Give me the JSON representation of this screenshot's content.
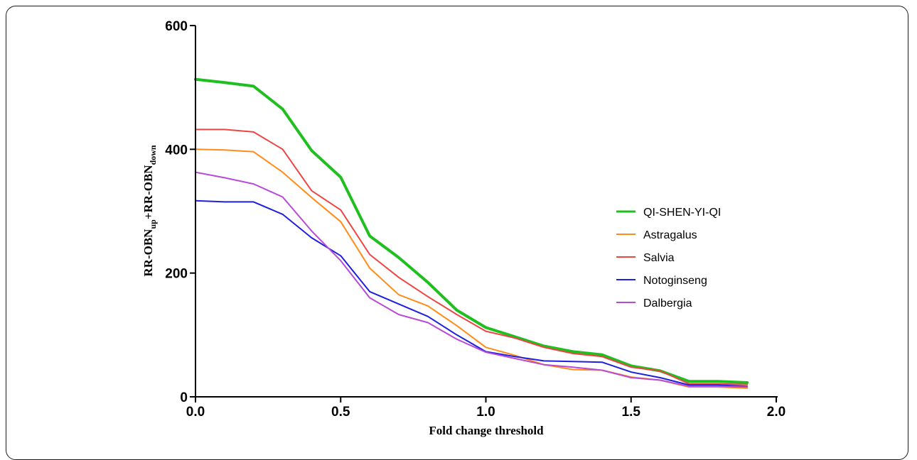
{
  "chart_data": {
    "type": "line",
    "title": "",
    "xlabel": "Fold change threshold",
    "ylabel": {
      "base1": "RR-OBN",
      "sub1": "up",
      "plus": "+",
      "base2": "RR-OBN",
      "sub2": "down"
    },
    "xlim": [
      0,
      2.0
    ],
    "ylim": [
      0,
      600
    ],
    "xticks": [
      {
        "value": 0.0,
        "label": "0.0"
      },
      {
        "value": 0.5,
        "label": "0.5"
      },
      {
        "value": 1.0,
        "label": "1.0"
      },
      {
        "value": 1.5,
        "label": "1.5"
      },
      {
        "value": 2.0,
        "label": "2.0"
      }
    ],
    "yticks": [
      {
        "value": 0,
        "label": "0"
      },
      {
        "value": 200,
        "label": "200"
      },
      {
        "value": 400,
        "label": "400"
      },
      {
        "value": 600,
        "label": "600"
      }
    ],
    "grid": false,
    "legend_position": "right",
    "x": [
      0.0,
      0.1,
      0.2,
      0.3,
      0.4,
      0.5,
      0.6,
      0.7,
      0.8,
      0.9,
      1.0,
      1.1,
      1.2,
      1.3,
      1.4,
      1.5,
      1.6,
      1.7,
      1.8,
      1.9
    ],
    "series": [
      {
        "name": "QI-SHEN-YI-QI",
        "color": "#1fbf1f",
        "width": 4,
        "values": [
          513,
          508,
          502,
          465,
          398,
          355,
          260,
          225,
          185,
          140,
          112,
          97,
          82,
          73,
          68,
          50,
          42,
          25,
          25,
          23
        ]
      },
      {
        "name": "Astragalus",
        "color": "#ff8c1a",
        "width": 2,
        "values": [
          400,
          399,
          396,
          363,
          322,
          283,
          208,
          165,
          147,
          115,
          80,
          67,
          52,
          44,
          43,
          32,
          27,
          16,
          16,
          14
        ]
      },
      {
        "name": "Salvia",
        "color": "#ee4444",
        "width": 2,
        "values": [
          432,
          432,
          428,
          400,
          333,
          302,
          230,
          193,
          162,
          133,
          106,
          95,
          80,
          70,
          65,
          48,
          42,
          21,
          21,
          20
        ]
      },
      {
        "name": "Notoginseng",
        "color": "#1f1fe0",
        "width": 2,
        "values": [
          317,
          315,
          315,
          295,
          257,
          228,
          170,
          150,
          130,
          100,
          73,
          65,
          58,
          57,
          56,
          40,
          31,
          19,
          19,
          17
        ]
      },
      {
        "name": "Dalbergia",
        "color": "#b84ad8",
        "width": 2,
        "values": [
          363,
          354,
          344,
          323,
          268,
          220,
          160,
          133,
          120,
          93,
          72,
          62,
          52,
          48,
          43,
          31,
          27,
          17,
          17,
          16
        ]
      }
    ]
  }
}
